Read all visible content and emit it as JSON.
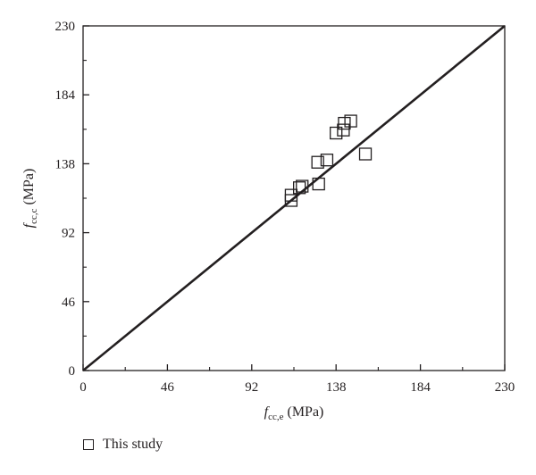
{
  "chart_data": {
    "type": "scatter",
    "xlabel_main": "f",
    "xlabel_sub": "cc,e",
    "xlabel_unit": " (MPa)",
    "ylabel_main": "f",
    "ylabel_sub": "cc,c",
    "ylabel_unit": " (MPa)",
    "xlim": [
      0,
      230
    ],
    "ylim": [
      0,
      230
    ],
    "xticks": [
      0,
      46,
      92,
      138,
      184,
      230
    ],
    "yticks": [
      0,
      46,
      92,
      138,
      184,
      230
    ],
    "xtick_labels": [
      "0",
      "46",
      "92",
      "138",
      "184",
      "230"
    ],
    "ytick_labels": [
      "0",
      "46",
      "92",
      "138",
      "184",
      "230"
    ],
    "reference_line": {
      "x": [
        0,
        230
      ],
      "y": [
        0,
        230
      ]
    },
    "series": [
      {
        "name": "This study",
        "marker": "open-square",
        "points": [
          {
            "x": 113.5,
            "y": 113.5
          },
          {
            "x": 113.5,
            "y": 117.0
          },
          {
            "x": 118.0,
            "y": 122.0
          },
          {
            "x": 119.5,
            "y": 123.0
          },
          {
            "x": 128.5,
            "y": 124.5
          },
          {
            "x": 128.0,
            "y": 139.0
          },
          {
            "x": 133.0,
            "y": 140.5
          },
          {
            "x": 154.0,
            "y": 144.5
          },
          {
            "x": 138.0,
            "y": 158.5
          },
          {
            "x": 142.0,
            "y": 160.5
          },
          {
            "x": 142.5,
            "y": 165.0
          },
          {
            "x": 146.0,
            "y": 166.5
          }
        ]
      }
    ],
    "legend": {
      "position": "bottom-left",
      "label": "This study"
    },
    "grid": false,
    "color": "#231f20"
  }
}
